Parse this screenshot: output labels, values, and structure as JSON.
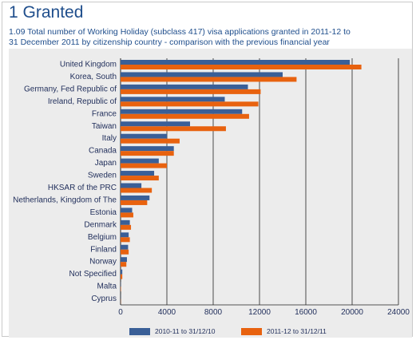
{
  "header": {
    "title": "1 Granted",
    "subtitle_line1": "1.09 Total number of Working Holiday (subclass 417) visa applications granted in 2011-12 to",
    "subtitle_line2": "31 December 2011 by citizenship country - comparison with the previous financial year"
  },
  "colors": {
    "series1": "#3a5f97",
    "series2": "#e8620f",
    "label_text": "#1f2d5a",
    "panel_bg": "#ececec",
    "gridline": "#222222"
  },
  "chart_data": {
    "type": "bar",
    "orientation": "horizontal",
    "categories": [
      "United Kingdom",
      "Korea, South",
      "Germany, Fed Republic of",
      "Ireland, Republic of",
      "France",
      "Taiwan",
      "Italy",
      "Canada",
      "Japan",
      "Sweden",
      "HKSAR of the PRC",
      "Netherlands, Kingdom of The",
      "Estonia",
      "Denmark",
      "Belgium",
      "Finland",
      "Norway",
      "Not Specified",
      "Malta",
      "Cyprus"
    ],
    "series": [
      {
        "name": "2010-11 to 31/12/10",
        "values": [
          19800,
          14000,
          11000,
          9000,
          10500,
          6000,
          4000,
          4600,
          3300,
          2900,
          1800,
          2500,
          1000,
          800,
          700,
          650,
          550,
          150,
          20,
          10
        ]
      },
      {
        "name": "2011-12 to 31/12/11",
        "values": [
          20800,
          15200,
          12100,
          11900,
          11100,
          9100,
          5100,
          4600,
          4000,
          3300,
          2700,
          2300,
          1100,
          900,
          800,
          700,
          500,
          150,
          30,
          15
        ]
      }
    ],
    "xlim": [
      0,
      24000
    ],
    "x_ticks": [
      "0",
      "4000",
      "8000",
      "12000",
      "16000",
      "20000",
      "24000"
    ],
    "grid": true,
    "legend_position": "bottom"
  }
}
